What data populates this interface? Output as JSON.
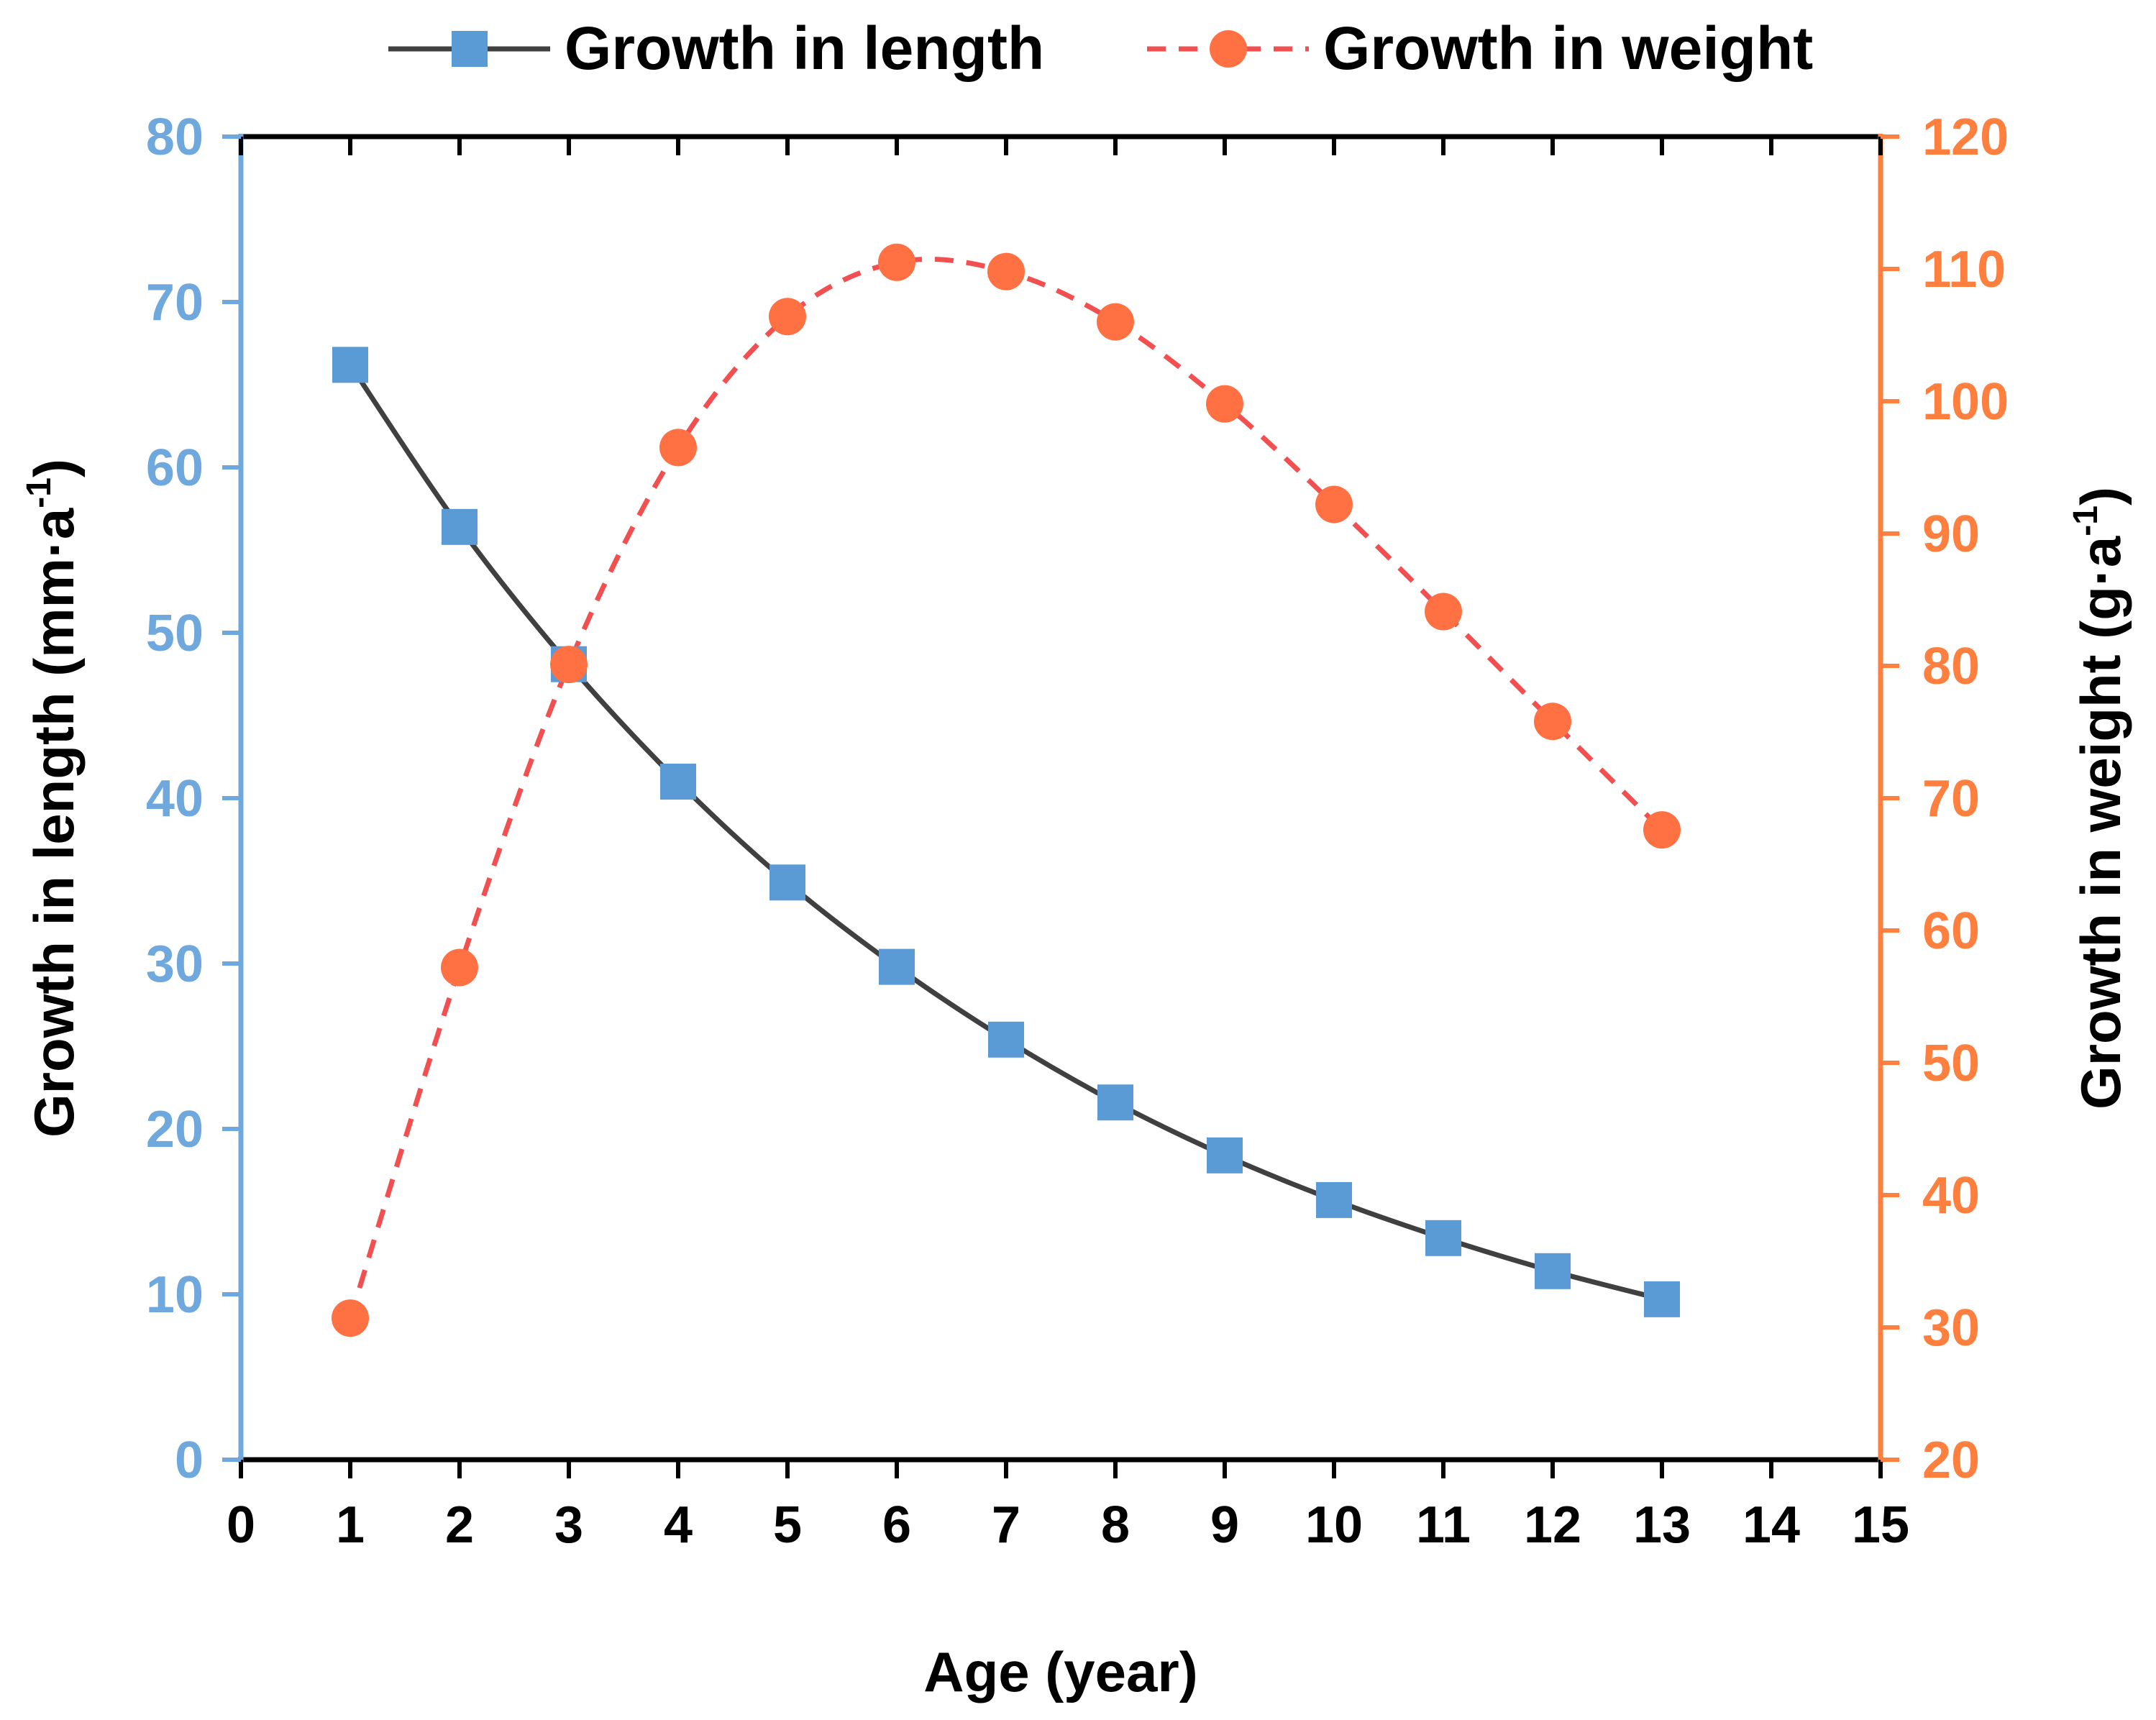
{
  "chart_data": {
    "type": "line",
    "xlabel": "Age (year)",
    "x_ticks": [
      "0",
      "1",
      "2",
      "3",
      "4",
      "5",
      "6",
      "7",
      "8",
      "9",
      "10",
      "11",
      "12",
      "13",
      "14",
      "15"
    ],
    "xlim": [
      0,
      15
    ],
    "ylabel_left": "Growth in length (mm·a",
    "ylabel_left_sup": "-1",
    "ylabel_left_close": ")",
    "ylabel_right": "Growth in weight (g·a",
    "ylabel_right_sup": "-1",
    "ylabel_right_close": ")",
    "ylim_left": [
      0,
      80
    ],
    "ylim_right": [
      20,
      120
    ],
    "y_ticks_left": [
      "0",
      "10",
      "20",
      "30",
      "40",
      "50",
      "60",
      "70",
      "80"
    ],
    "y_ticks_right": [
      "20",
      "30",
      "40",
      "50",
      "60",
      "70",
      "80",
      "90",
      "100",
      "110",
      "120"
    ],
    "colors": {
      "left_axis": "#6fa8dc",
      "right_axis": "#ff7f3f",
      "length_line": "#404040",
      "length_marker": "#5b9bd5",
      "weight_line": "#f25050",
      "weight_marker": "#ff7043"
    },
    "series": [
      {
        "name": "Growth in length",
        "axis": "left",
        "x": [
          1,
          2,
          3,
          4,
          5,
          6,
          7,
          8,
          9,
          10,
          11,
          12,
          13
        ],
        "values": [
          66.2,
          56.4,
          48.1,
          41.0,
          34.9,
          29.8,
          25.4,
          21.6,
          18.4,
          15.7,
          13.4,
          11.4,
          9.7
        ]
      },
      {
        "name": "Growth in weight",
        "axis": "right",
        "x": [
          1,
          2,
          3,
          4,
          5,
          6,
          7,
          8,
          9,
          10,
          11,
          12,
          13
        ],
        "values": [
          30.7,
          57.2,
          80.1,
          96.5,
          106.4,
          110.5,
          109.8,
          106.0,
          99.8,
          92.2,
          84.1,
          75.8,
          67.6
        ]
      }
    ]
  }
}
